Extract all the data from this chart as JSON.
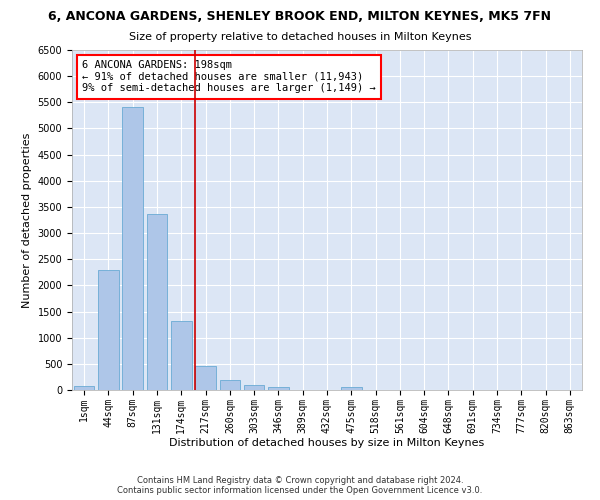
{
  "title": "6, ANCONA GARDENS, SHENLEY BROOK END, MILTON KEYNES, MK5 7FN",
  "subtitle": "Size of property relative to detached houses in Milton Keynes",
  "xlabel": "Distribution of detached houses by size in Milton Keynes",
  "ylabel": "Number of detached properties",
  "categories": [
    "1sqm",
    "44sqm",
    "87sqm",
    "131sqm",
    "174sqm",
    "217sqm",
    "260sqm",
    "303sqm",
    "346sqm",
    "389sqm",
    "432sqm",
    "475sqm",
    "518sqm",
    "561sqm",
    "604sqm",
    "648sqm",
    "691sqm",
    "734sqm",
    "777sqm",
    "820sqm",
    "863sqm"
  ],
  "values": [
    70,
    2290,
    5410,
    3370,
    1315,
    468,
    198,
    100,
    55,
    0,
    0,
    65,
    0,
    0,
    0,
    0,
    0,
    0,
    0,
    0,
    0
  ],
  "bar_color": "#aec6e8",
  "bar_edgecolor": "#6aaad4",
  "vline_color": "#cc0000",
  "annotation_line1": "6 ANCONA GARDENS: 198sqm",
  "annotation_line2": "← 91% of detached houses are smaller (11,943)",
  "annotation_line3": "9% of semi-detached houses are larger (1,149) →",
  "ylim": [
    0,
    6500
  ],
  "yticks": [
    0,
    500,
    1000,
    1500,
    2000,
    2500,
    3000,
    3500,
    4000,
    4500,
    5000,
    5500,
    6000,
    6500
  ],
  "footer_line1": "Contains HM Land Registry data © Crown copyright and database right 2024.",
  "footer_line2": "Contains public sector information licensed under the Open Government Licence v3.0.",
  "background_color": "#dce6f5",
  "grid_color": "#ffffff",
  "fig_background": "#ffffff",
  "title_fontsize": 9,
  "subtitle_fontsize": 8,
  "xlabel_fontsize": 8,
  "ylabel_fontsize": 8,
  "annotation_fontsize": 7.5,
  "tick_fontsize": 7
}
